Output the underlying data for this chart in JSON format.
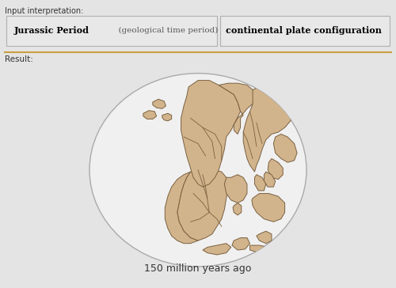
{
  "bg_color": "#e4e4e4",
  "header_border": "#b0b0b0",
  "input_label": "Input interpretation:",
  "result_label": "Result:",
  "box1_text_bold": "Jurassic Period",
  "box1_text_normal": "  (geological time period)",
  "box2_text": "continental plate configuration",
  "caption": "150 million years ago",
  "land_color": "#d2b48c",
  "land_edge_color": "#7a6040",
  "ellipse_bg": "#f0f0f0",
  "ellipse_edge": "#aaaaaa",
  "caption_fontsize": 9,
  "separator_color": "#c8a040"
}
